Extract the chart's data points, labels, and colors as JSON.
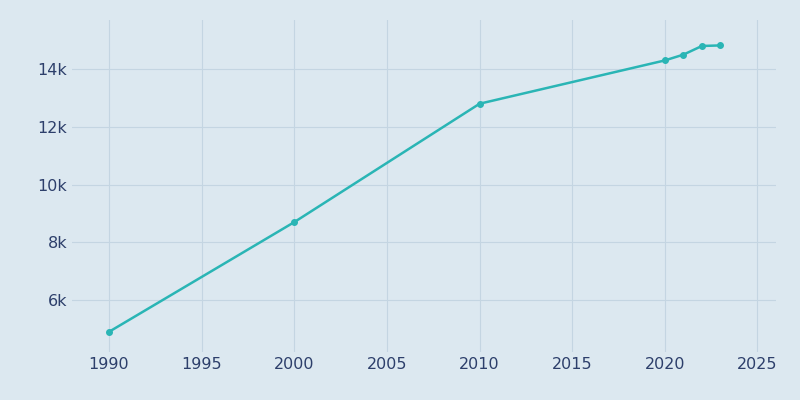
{
  "years": [
    1990,
    2000,
    2010,
    2020,
    2021,
    2022,
    2023
  ],
  "population": [
    4900,
    8700,
    12800,
    14300,
    14500,
    14800,
    14820
  ],
  "line_color": "#2ab5b5",
  "marker": "o",
  "marker_size": 4,
  "axes_facecolor": "#dce8f0",
  "figure_facecolor": "#dce8f0",
  "tick_color": "#2d3f6b",
  "xlim": [
    1988,
    2026
  ],
  "ylim": [
    4200,
    15700
  ],
  "xticks": [
    1990,
    1995,
    2000,
    2005,
    2010,
    2015,
    2020,
    2025
  ],
  "ytick_values": [
    6000,
    8000,
    10000,
    12000,
    14000
  ],
  "ytick_labels": [
    "6k",
    "8k",
    "10k",
    "12k",
    "14k"
  ],
  "tick_fontsize": 11.5,
  "grid_color": "#c4d5e2",
  "linewidth": 1.8
}
